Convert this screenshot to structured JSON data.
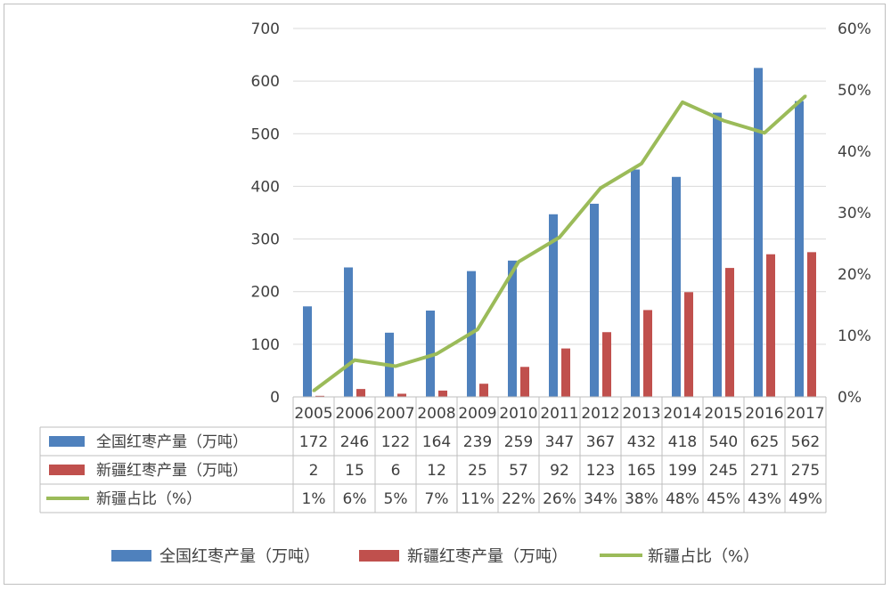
{
  "chart_data": {
    "type": "bar",
    "categories": [
      "2005",
      "2006",
      "2007",
      "2008",
      "2009",
      "2010",
      "2011",
      "2012",
      "2013",
      "2014",
      "2015",
      "2016",
      "2017"
    ],
    "series": [
      {
        "name": "全国红枣产量（万吨）",
        "type": "bar",
        "axis": "left",
        "color": "#4f81bd",
        "values": [
          172,
          246,
          122,
          164,
          239,
          259,
          347,
          367,
          432,
          418,
          540,
          625,
          562
        ]
      },
      {
        "name": "新疆红枣产量（万吨）",
        "type": "bar",
        "axis": "left",
        "color": "#c0504d",
        "values": [
          2,
          15,
          6,
          12,
          25,
          57,
          92,
          123,
          165,
          199,
          245,
          271,
          275
        ]
      },
      {
        "name": "新疆占比（%）",
        "type": "line",
        "axis": "right",
        "color": "#9bbb59",
        "values": [
          1,
          6,
          5,
          7,
          11,
          22,
          26,
          34,
          38,
          48,
          45,
          43,
          49
        ],
        "labels": [
          "1%",
          "6%",
          "5%",
          "7%",
          "11%",
          "22%",
          "26%",
          "34%",
          "38%",
          "48%",
          "45%",
          "43%",
          "49%"
        ]
      }
    ],
    "y_left": {
      "min": 0,
      "max": 700,
      "ticks": [
        "0",
        "100",
        "200",
        "300",
        "400",
        "500",
        "600",
        "700"
      ]
    },
    "y_right": {
      "min": 0,
      "max": 60,
      "ticks": [
        "0%",
        "10%",
        "20%",
        "30%",
        "40%",
        "50%",
        "60%"
      ]
    },
    "grid": true,
    "data_table": true,
    "legend": "bottom"
  }
}
